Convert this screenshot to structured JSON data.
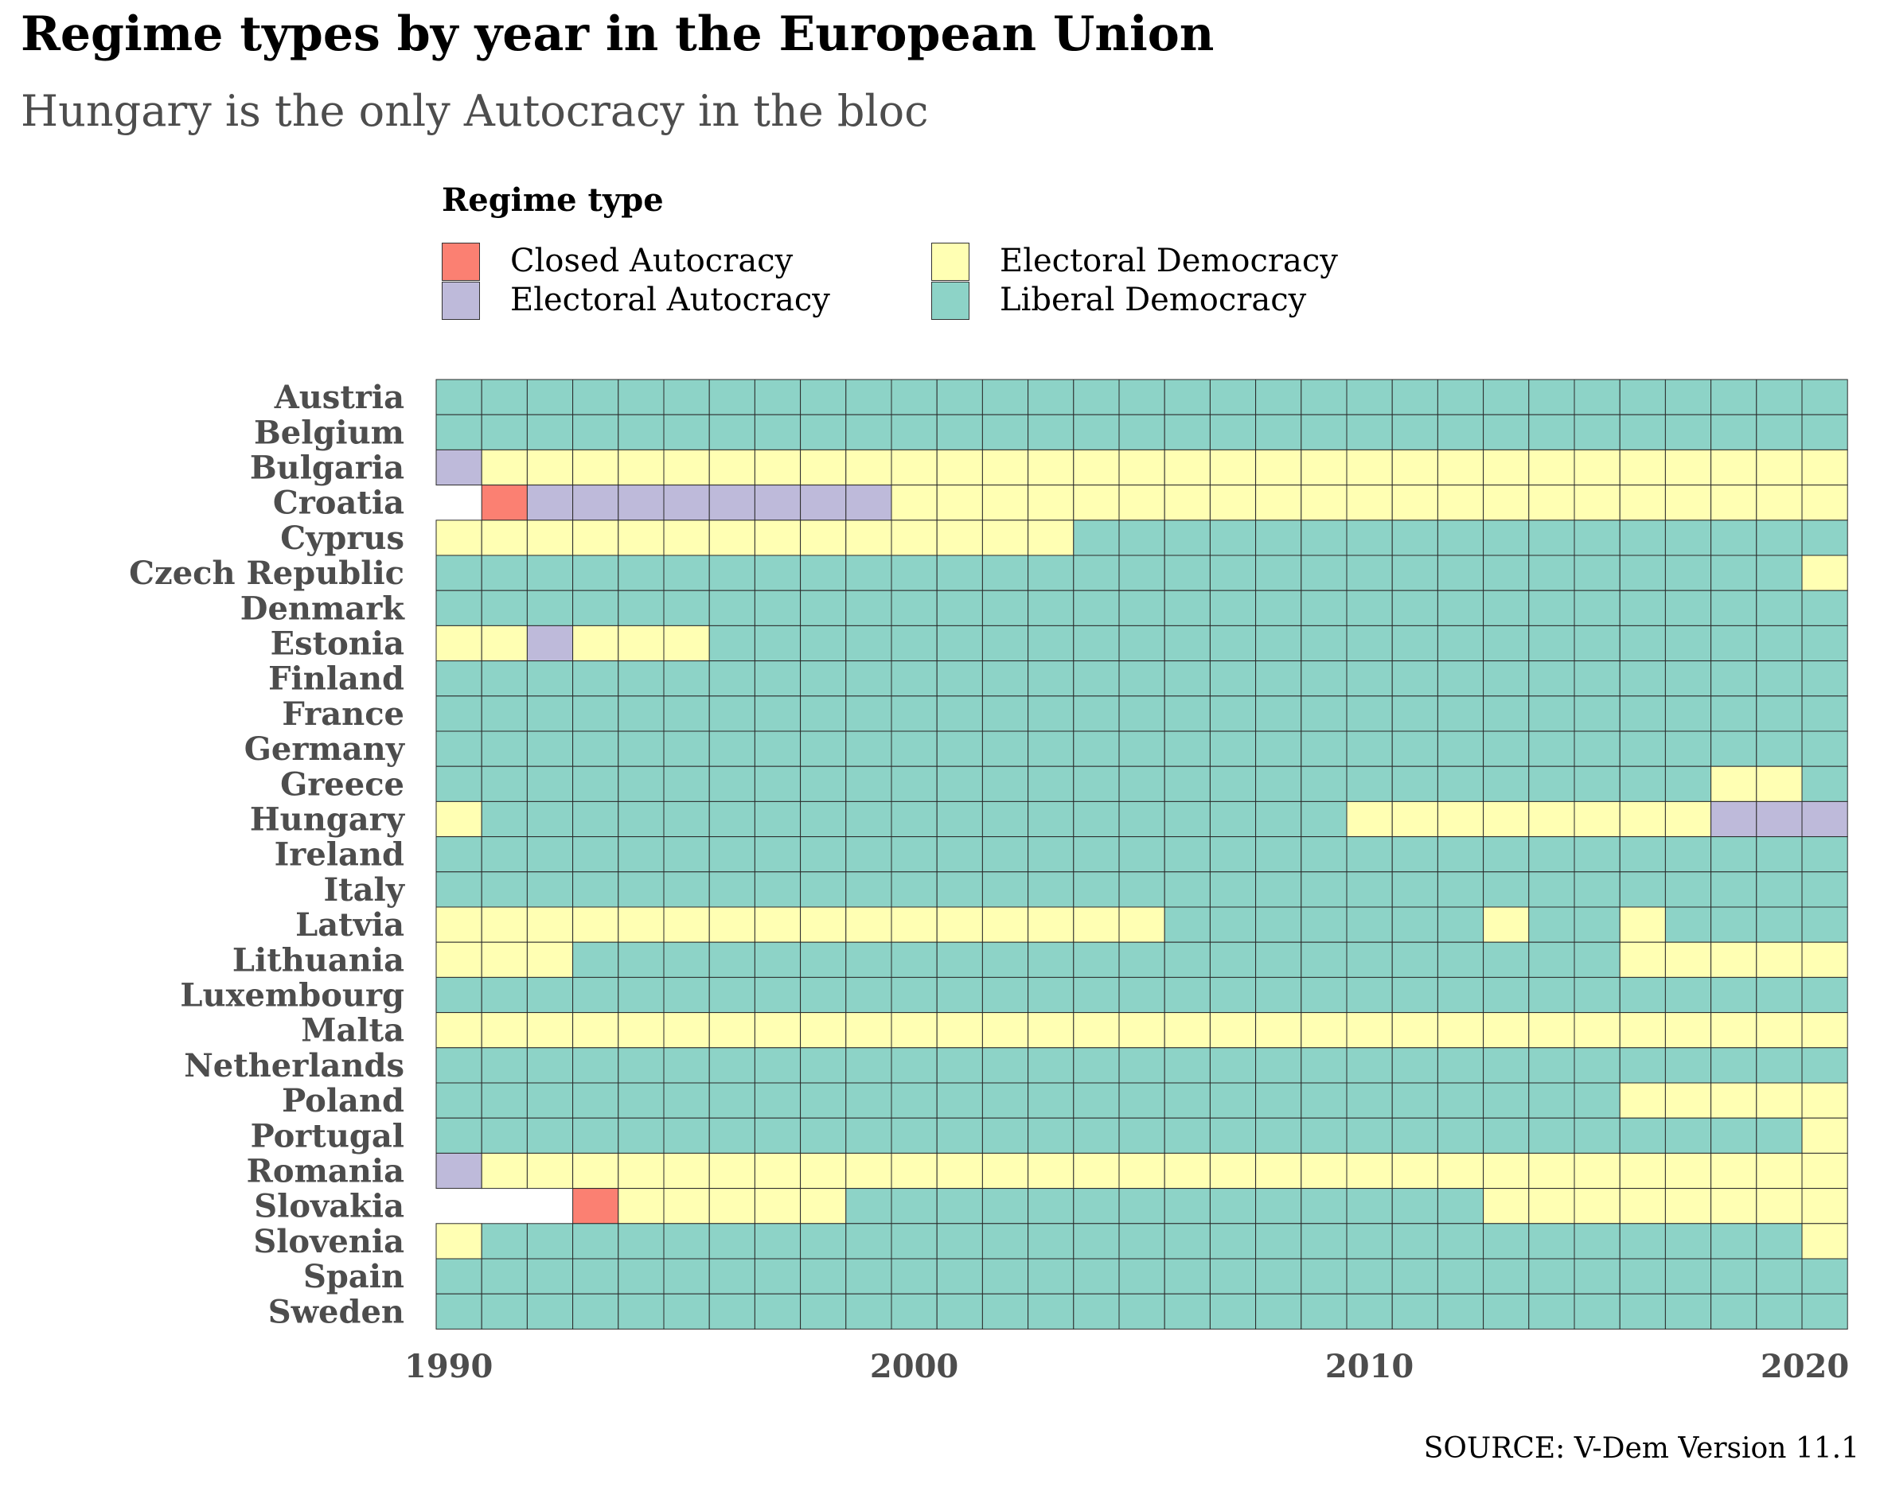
{
  "title": "Regime types by year in the European Union",
  "subtitle": "Hungary is the only Autocracy in the bloc",
  "source": "SOURCE: V-Dem Version 11.1",
  "legend": {
    "title": "Regime type",
    "items": [
      {
        "key": "CA",
        "label": "Closed Autocracy",
        "color": "#fb8072"
      },
      {
        "key": "EA",
        "label": "Electoral Autocracy",
        "color": "#bebada"
      },
      {
        "key": "ED",
        "label": "Electoral Democracy",
        "color": "#ffffb3"
      },
      {
        "key": "LD",
        "label": "Liberal Democracy",
        "color": "#8dd3c7"
      }
    ]
  },
  "chart_data": {
    "type": "heatmap",
    "title": "Regime types by year in the European Union",
    "subtitle": "Hungary is the only Autocracy in the bloc",
    "xlabel": "",
    "ylabel": "",
    "x_range": [
      1990,
      2020
    ],
    "x_ticks": [
      1990,
      2000,
      2010,
      2020
    ],
    "categories_legend": [
      "Closed Autocracy",
      "Electoral Autocracy",
      "Electoral Democracy",
      "Liberal Democracy"
    ],
    "countries": [
      "Austria",
      "Belgium",
      "Bulgaria",
      "Croatia",
      "Cyprus",
      "Czech Republic",
      "Denmark",
      "Estonia",
      "Finland",
      "France",
      "Germany",
      "Greece",
      "Hungary",
      "Ireland",
      "Italy",
      "Latvia",
      "Lithuania",
      "Luxembourg",
      "Malta",
      "Netherlands",
      "Poland",
      "Portugal",
      "Romania",
      "Slovakia",
      "Slovenia",
      "Spain",
      "Sweden"
    ],
    "years": [
      1990,
      1991,
      1992,
      1993,
      1994,
      1995,
      1996,
      1997,
      1998,
      1999,
      2000,
      2001,
      2002,
      2003,
      2004,
      2005,
      2006,
      2007,
      2008,
      2009,
      2010,
      2011,
      2012,
      2013,
      2014,
      2015,
      2016,
      2017,
      2018,
      2019,
      2020
    ],
    "regimes": {
      "Austria": [
        {
          "from": 1990,
          "to": 2020,
          "type": "Liberal Democracy"
        }
      ],
      "Belgium": [
        {
          "from": 1990,
          "to": 2020,
          "type": "Liberal Democracy"
        }
      ],
      "Bulgaria": [
        {
          "from": 1990,
          "to": 1990,
          "type": "Electoral Autocracy"
        },
        {
          "from": 1991,
          "to": 2020,
          "type": "Electoral Democracy"
        }
      ],
      "Croatia": [
        {
          "from": 1991,
          "to": 1991,
          "type": "Closed Autocracy"
        },
        {
          "from": 1992,
          "to": 1999,
          "type": "Electoral Autocracy"
        },
        {
          "from": 2000,
          "to": 2020,
          "type": "Electoral Democracy"
        }
      ],
      "Cyprus": [
        {
          "from": 1990,
          "to": 2003,
          "type": "Electoral Democracy"
        },
        {
          "from": 2004,
          "to": 2020,
          "type": "Liberal Democracy"
        }
      ],
      "Czech Republic": [
        {
          "from": 1990,
          "to": 2019,
          "type": "Liberal Democracy"
        },
        {
          "from": 2020,
          "to": 2020,
          "type": "Electoral Democracy"
        }
      ],
      "Denmark": [
        {
          "from": 1990,
          "to": 2020,
          "type": "Liberal Democracy"
        }
      ],
      "Estonia": [
        {
          "from": 1990,
          "to": 1991,
          "type": "Electoral Democracy"
        },
        {
          "from": 1992,
          "to": 1992,
          "type": "Electoral Autocracy"
        },
        {
          "from": 1993,
          "to": 1995,
          "type": "Electoral Democracy"
        },
        {
          "from": 1996,
          "to": 2020,
          "type": "Liberal Democracy"
        }
      ],
      "Finland": [
        {
          "from": 1990,
          "to": 2020,
          "type": "Liberal Democracy"
        }
      ],
      "France": [
        {
          "from": 1990,
          "to": 2020,
          "type": "Liberal Democracy"
        }
      ],
      "Germany": [
        {
          "from": 1990,
          "to": 2020,
          "type": "Liberal Democracy"
        }
      ],
      "Greece": [
        {
          "from": 1990,
          "to": 2017,
          "type": "Liberal Democracy"
        },
        {
          "from": 2018,
          "to": 2019,
          "type": "Electoral Democracy"
        },
        {
          "from": 2020,
          "to": 2020,
          "type": "Liberal Democracy"
        }
      ],
      "Hungary": [
        {
          "from": 1990,
          "to": 1990,
          "type": "Electoral Democracy"
        },
        {
          "from": 1991,
          "to": 2009,
          "type": "Liberal Democracy"
        },
        {
          "from": 2010,
          "to": 2017,
          "type": "Electoral Democracy"
        },
        {
          "from": 2018,
          "to": 2020,
          "type": "Electoral Autocracy"
        }
      ],
      "Ireland": [
        {
          "from": 1990,
          "to": 2020,
          "type": "Liberal Democracy"
        }
      ],
      "Italy": [
        {
          "from": 1990,
          "to": 2020,
          "type": "Liberal Democracy"
        }
      ],
      "Latvia": [
        {
          "from": 1990,
          "to": 2005,
          "type": "Electoral Democracy"
        },
        {
          "from": 2006,
          "to": 2012,
          "type": "Liberal Democracy"
        },
        {
          "from": 2013,
          "to": 2013,
          "type": "Electoral Democracy"
        },
        {
          "from": 2014,
          "to": 2015,
          "type": "Liberal Democracy"
        },
        {
          "from": 2016,
          "to": 2016,
          "type": "Electoral Democracy"
        },
        {
          "from": 2017,
          "to": 2020,
          "type": "Liberal Democracy"
        }
      ],
      "Lithuania": [
        {
          "from": 1990,
          "to": 1992,
          "type": "Electoral Democracy"
        },
        {
          "from": 1993,
          "to": 2015,
          "type": "Liberal Democracy"
        },
        {
          "from": 2016,
          "to": 2020,
          "type": "Electoral Democracy"
        }
      ],
      "Luxembourg": [
        {
          "from": 1990,
          "to": 2020,
          "type": "Liberal Democracy"
        }
      ],
      "Malta": [
        {
          "from": 1990,
          "to": 2020,
          "type": "Electoral Democracy"
        }
      ],
      "Netherlands": [
        {
          "from": 1990,
          "to": 2020,
          "type": "Liberal Democracy"
        }
      ],
      "Poland": [
        {
          "from": 1990,
          "to": 2015,
          "type": "Liberal Democracy"
        },
        {
          "from": 2016,
          "to": 2020,
          "type": "Electoral Democracy"
        }
      ],
      "Portugal": [
        {
          "from": 1990,
          "to": 2019,
          "type": "Liberal Democracy"
        },
        {
          "from": 2020,
          "to": 2020,
          "type": "Electoral Democracy"
        }
      ],
      "Romania": [
        {
          "from": 1990,
          "to": 1990,
          "type": "Electoral Autocracy"
        },
        {
          "from": 1991,
          "to": 2020,
          "type": "Electoral Democracy"
        }
      ],
      "Slovakia": [
        {
          "from": 1993,
          "to": 1993,
          "type": "Closed Autocracy"
        },
        {
          "from": 1994,
          "to": 1998,
          "type": "Electoral Democracy"
        },
        {
          "from": 1999,
          "to": 2012,
          "type": "Liberal Democracy"
        },
        {
          "from": 2013,
          "to": 2020,
          "type": "Electoral Democracy"
        }
      ],
      "Slovenia": [
        {
          "from": 1990,
          "to": 1990,
          "type": "Electoral Democracy"
        },
        {
          "from": 1991,
          "to": 2019,
          "type": "Liberal Democracy"
        },
        {
          "from": 2020,
          "to": 2020,
          "type": "Electoral Democracy"
        }
      ],
      "Spain": [
        {
          "from": 1990,
          "to": 2020,
          "type": "Liberal Democracy"
        }
      ],
      "Sweden": [
        {
          "from": 1990,
          "to": 2020,
          "type": "Liberal Democracy"
        }
      ]
    },
    "grid": false,
    "legend_position": "top"
  }
}
